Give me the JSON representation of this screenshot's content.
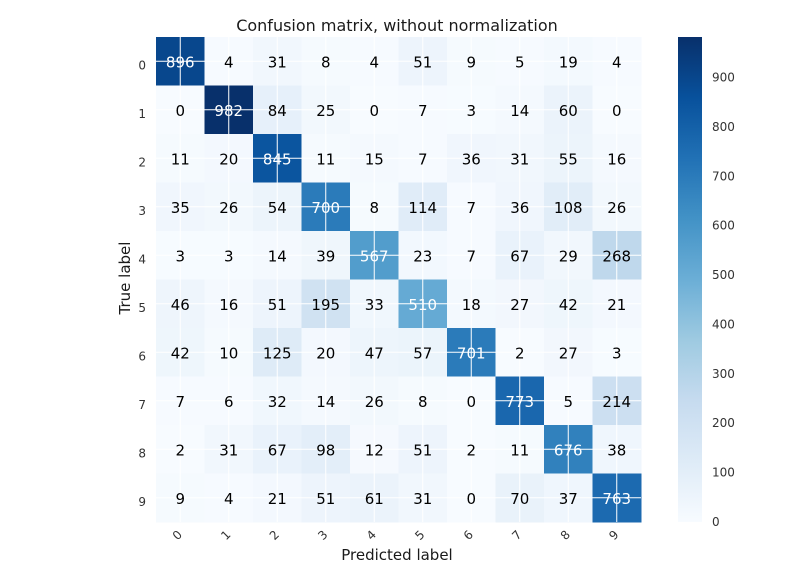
{
  "chart_data": {
    "type": "heatmap",
    "title": "Confusion matrix, without normalization",
    "xlabel": "Predicted label",
    "ylabel": "True label",
    "x_categories": [
      "0",
      "1",
      "2",
      "3",
      "4",
      "5",
      "6",
      "7",
      "8",
      "9"
    ],
    "y_categories": [
      "0",
      "1",
      "2",
      "3",
      "4",
      "5",
      "6",
      "7",
      "8",
      "9"
    ],
    "matrix": [
      [
        896,
        4,
        31,
        8,
        4,
        51,
        9,
        5,
        19,
        4
      ],
      [
        0,
        982,
        84,
        25,
        0,
        7,
        3,
        14,
        60,
        0
      ],
      [
        11,
        20,
        845,
        11,
        15,
        7,
        36,
        31,
        55,
        16
      ],
      [
        35,
        26,
        54,
        700,
        8,
        114,
        7,
        36,
        108,
        26
      ],
      [
        3,
        3,
        14,
        39,
        567,
        23,
        7,
        67,
        29,
        268
      ],
      [
        46,
        16,
        51,
        195,
        33,
        510,
        18,
        27,
        42,
        21
      ],
      [
        42,
        10,
        125,
        20,
        47,
        57,
        701,
        2,
        27,
        3
      ],
      [
        7,
        6,
        32,
        14,
        26,
        8,
        0,
        773,
        5,
        214
      ],
      [
        2,
        31,
        67,
        98,
        12,
        51,
        2,
        11,
        676,
        38
      ],
      [
        9,
        4,
        21,
        51,
        61,
        31,
        0,
        70,
        37,
        763
      ]
    ],
    "vmin": 0,
    "vmax": 982,
    "colormap": "Blues",
    "colorbar_ticks": [
      0,
      100,
      200,
      300,
      400,
      500,
      600,
      700,
      800,
      900
    ],
    "text_color_dark": "#000000",
    "text_color_light": "#ffffff",
    "grid": true
  }
}
